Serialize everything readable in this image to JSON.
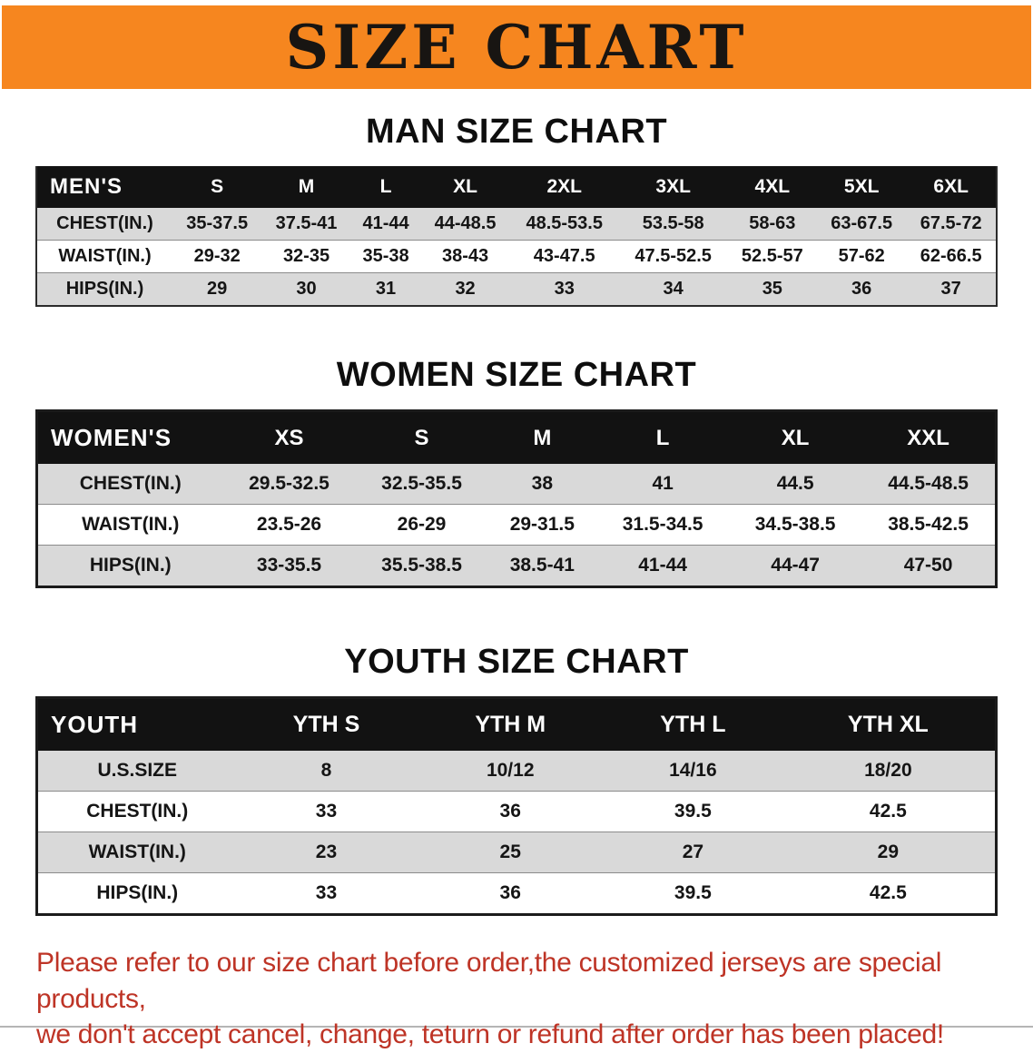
{
  "theme": {
    "accent": "#F6861F",
    "title_text": "#181512",
    "header_bg": "#121212",
    "header_text": "#ffffff",
    "row_alt_bg": "#D9D9D9",
    "notice_text": "#BE3426"
  },
  "banner": {
    "title": "SIZE CHART"
  },
  "sections": [
    {
      "heading": "MAN SIZE CHART",
      "table": {
        "header": [
          "MEN'S",
          "S",
          "M",
          "L",
          "XL",
          "2XL",
          "3XL",
          "4XL",
          "5XL",
          "6XL"
        ],
        "rows": [
          [
            "CHEST(IN.)",
            "35-37.5",
            "37.5-41",
            "41-44",
            "44-48.5",
            "48.5-53.5",
            "53.5-58",
            "58-63",
            "63-67.5",
            "67.5-72"
          ],
          [
            "WAIST(IN.)",
            "29-32",
            "32-35",
            "35-38",
            "38-43",
            "43-47.5",
            "47.5-52.5",
            "52.5-57",
            "57-62",
            "62-66.5"
          ],
          [
            "HIPS(IN.)",
            "29",
            "30",
            "31",
            "32",
            "33",
            "34",
            "35",
            "36",
            "37"
          ]
        ]
      }
    },
    {
      "heading": "WOMEN SIZE CHART",
      "table": {
        "header": [
          "WOMEN'S",
          "XS",
          "S",
          "M",
          "L",
          "XL",
          "XXL"
        ],
        "rows": [
          [
            "CHEST(IN.)",
            "29.5-32.5",
            "32.5-35.5",
            "38",
            "41",
            "44.5",
            "44.5-48.5"
          ],
          [
            "WAIST(IN.)",
            "23.5-26",
            "26-29",
            "29-31.5",
            "31.5-34.5",
            "34.5-38.5",
            "38.5-42.5"
          ],
          [
            "HIPS(IN.)",
            "33-35.5",
            "35.5-38.5",
            "38.5-41",
            "41-44",
            "44-47",
            "47-50"
          ]
        ]
      }
    },
    {
      "heading": "YOUTH SIZE CHART",
      "table": {
        "header": [
          "YOUTH",
          "YTH S",
          "YTH M",
          "YTH L",
          "YTH XL"
        ],
        "rows": [
          [
            "U.S.SIZE",
            "8",
            "10/12",
            "14/16",
            "18/20"
          ],
          [
            "CHEST(IN.)",
            "33",
            "36",
            "39.5",
            "42.5"
          ],
          [
            "WAIST(IN.)",
            "23",
            "25",
            "27",
            "29"
          ],
          [
            "HIPS(IN.)",
            "33",
            "36",
            "39.5",
            "42.5"
          ]
        ]
      }
    }
  ],
  "footer": {
    "line1": "Please refer to our size chart before order,the customized jerseys are special products,",
    "line2": "we don't accept cancel, change, teturn or refund after order has been placed!"
  }
}
